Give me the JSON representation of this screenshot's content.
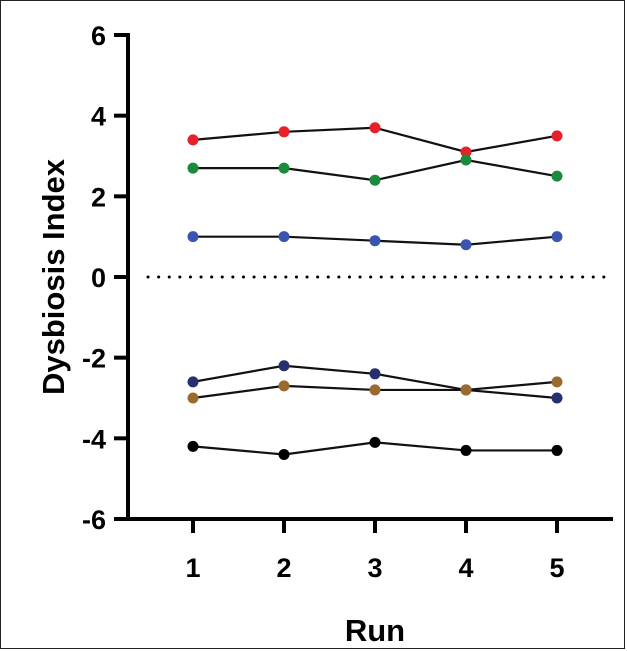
{
  "chart_data": {
    "type": "line",
    "xlabel": "Run",
    "ylabel": "Dysbiosis Index",
    "x": [
      1,
      2,
      3,
      4,
      5
    ],
    "xticks": [
      "1",
      "2",
      "3",
      "4",
      "5"
    ],
    "ylim": [
      -6,
      6
    ],
    "yticks": [
      "6",
      "4",
      "2",
      "0",
      "-2",
      "-4",
      "-6"
    ],
    "reference_line": {
      "y": 0,
      "style": "dotted"
    },
    "grid": false,
    "series": [
      {
        "values": [
          3.4,
          3.6,
          3.7,
          3.1,
          3.5
        ],
        "color": "#e8202a"
      },
      {
        "values": [
          2.7,
          2.7,
          2.4,
          2.9,
          2.5
        ],
        "color": "#1a8a3c"
      },
      {
        "values": [
          1.0,
          1.0,
          0.9,
          0.8,
          1.0
        ],
        "color": "#3a55b0"
      },
      {
        "values": [
          -2.6,
          -2.2,
          -2.4,
          -2.8,
          -3.0
        ],
        "color": "#27306e"
      },
      {
        "values": [
          -3.0,
          -2.7,
          -2.8,
          -2.8,
          -2.6
        ],
        "color": "#9a6a2e"
      },
      {
        "values": [
          -4.2,
          -4.4,
          -4.1,
          -4.3,
          -4.3
        ],
        "color": "#000000"
      }
    ]
  }
}
